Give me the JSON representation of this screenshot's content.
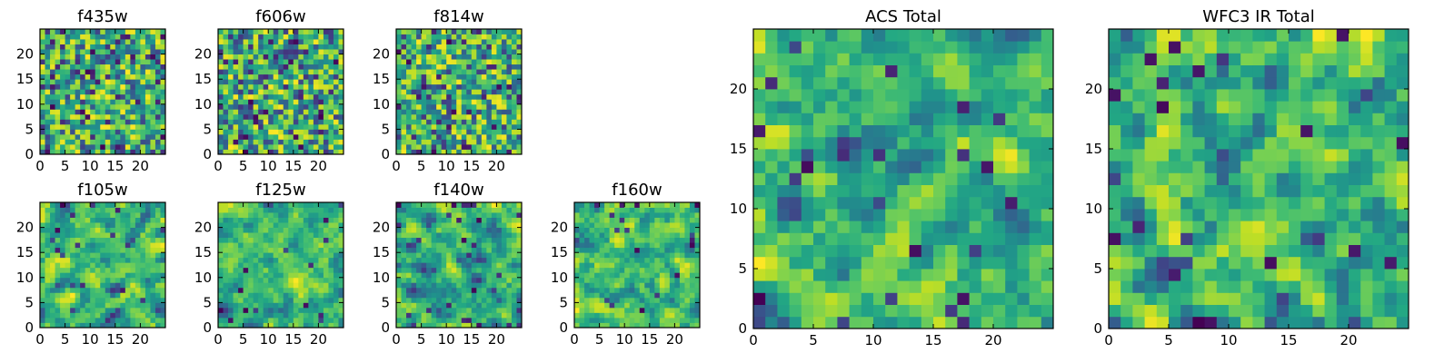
{
  "chart_data": [
    {
      "type": "heatmap",
      "title": "f435w",
      "xlim": [
        0,
        25
      ],
      "ylim": [
        0,
        25
      ],
      "xticks": [
        "0",
        "5",
        "10",
        "15",
        "20"
      ],
      "yticks": [
        "0",
        "5",
        "10",
        "15",
        "20"
      ],
      "grid_size": 25,
      "cmap": "viridis"
    },
    {
      "type": "heatmap",
      "title": "f606w",
      "xlim": [
        0,
        25
      ],
      "ylim": [
        0,
        25
      ],
      "xticks": [
        "0",
        "5",
        "10",
        "15",
        "20"
      ],
      "yticks": [
        "0",
        "5",
        "10",
        "15",
        "20"
      ],
      "grid_size": 25,
      "cmap": "viridis"
    },
    {
      "type": "heatmap",
      "title": "f814w",
      "xlim": [
        0,
        25
      ],
      "ylim": [
        0,
        25
      ],
      "xticks": [
        "0",
        "5",
        "10",
        "15",
        "20"
      ],
      "yticks": [
        "0",
        "5",
        "10",
        "15",
        "20"
      ],
      "grid_size": 25,
      "cmap": "viridis"
    },
    {
      "type": "heatmap",
      "title": "f105w",
      "xlim": [
        0,
        25
      ],
      "ylim": [
        0,
        25
      ],
      "xticks": [
        "0",
        "5",
        "10",
        "15",
        "20"
      ],
      "yticks": [
        "0",
        "5",
        "10",
        "15",
        "20"
      ],
      "grid_size": 25,
      "cmap": "viridis"
    },
    {
      "type": "heatmap",
      "title": "f125w",
      "xlim": [
        0,
        25
      ],
      "ylim": [
        0,
        25
      ],
      "xticks": [
        "0",
        "5",
        "10",
        "15",
        "20"
      ],
      "yticks": [
        "0",
        "5",
        "10",
        "15",
        "20"
      ],
      "grid_size": 25,
      "cmap": "viridis"
    },
    {
      "type": "heatmap",
      "title": "f140w",
      "xlim": [
        0,
        25
      ],
      "ylim": [
        0,
        25
      ],
      "xticks": [
        "0",
        "5",
        "10",
        "15",
        "20"
      ],
      "yticks": [
        "0",
        "5",
        "10",
        "15",
        "20"
      ],
      "grid_size": 25,
      "cmap": "viridis"
    },
    {
      "type": "heatmap",
      "title": "f160w",
      "xlim": [
        0,
        25
      ],
      "ylim": [
        0,
        25
      ],
      "xticks": [
        "0",
        "5",
        "10",
        "15",
        "20"
      ],
      "yticks": [
        "0",
        "5",
        "10",
        "15",
        "20"
      ],
      "grid_size": 25,
      "cmap": "viridis"
    },
    {
      "type": "heatmap",
      "title": "ACS Total",
      "xlim": [
        0,
        25
      ],
      "ylim": [
        0,
        25
      ],
      "xticks": [
        "0",
        "5",
        "10",
        "15",
        "20"
      ],
      "yticks": [
        "0",
        "5",
        "10",
        "15",
        "20"
      ],
      "grid_size": 25,
      "cmap": "viridis"
    },
    {
      "type": "heatmap",
      "title": "WFC3 IR Total",
      "xlim": [
        0,
        25
      ],
      "ylim": [
        0,
        25
      ],
      "xticks": [
        "0",
        "5",
        "10",
        "15",
        "20"
      ],
      "yticks": [
        "0",
        "5",
        "10",
        "15",
        "20"
      ],
      "grid_size": 25,
      "cmap": "viridis"
    }
  ]
}
